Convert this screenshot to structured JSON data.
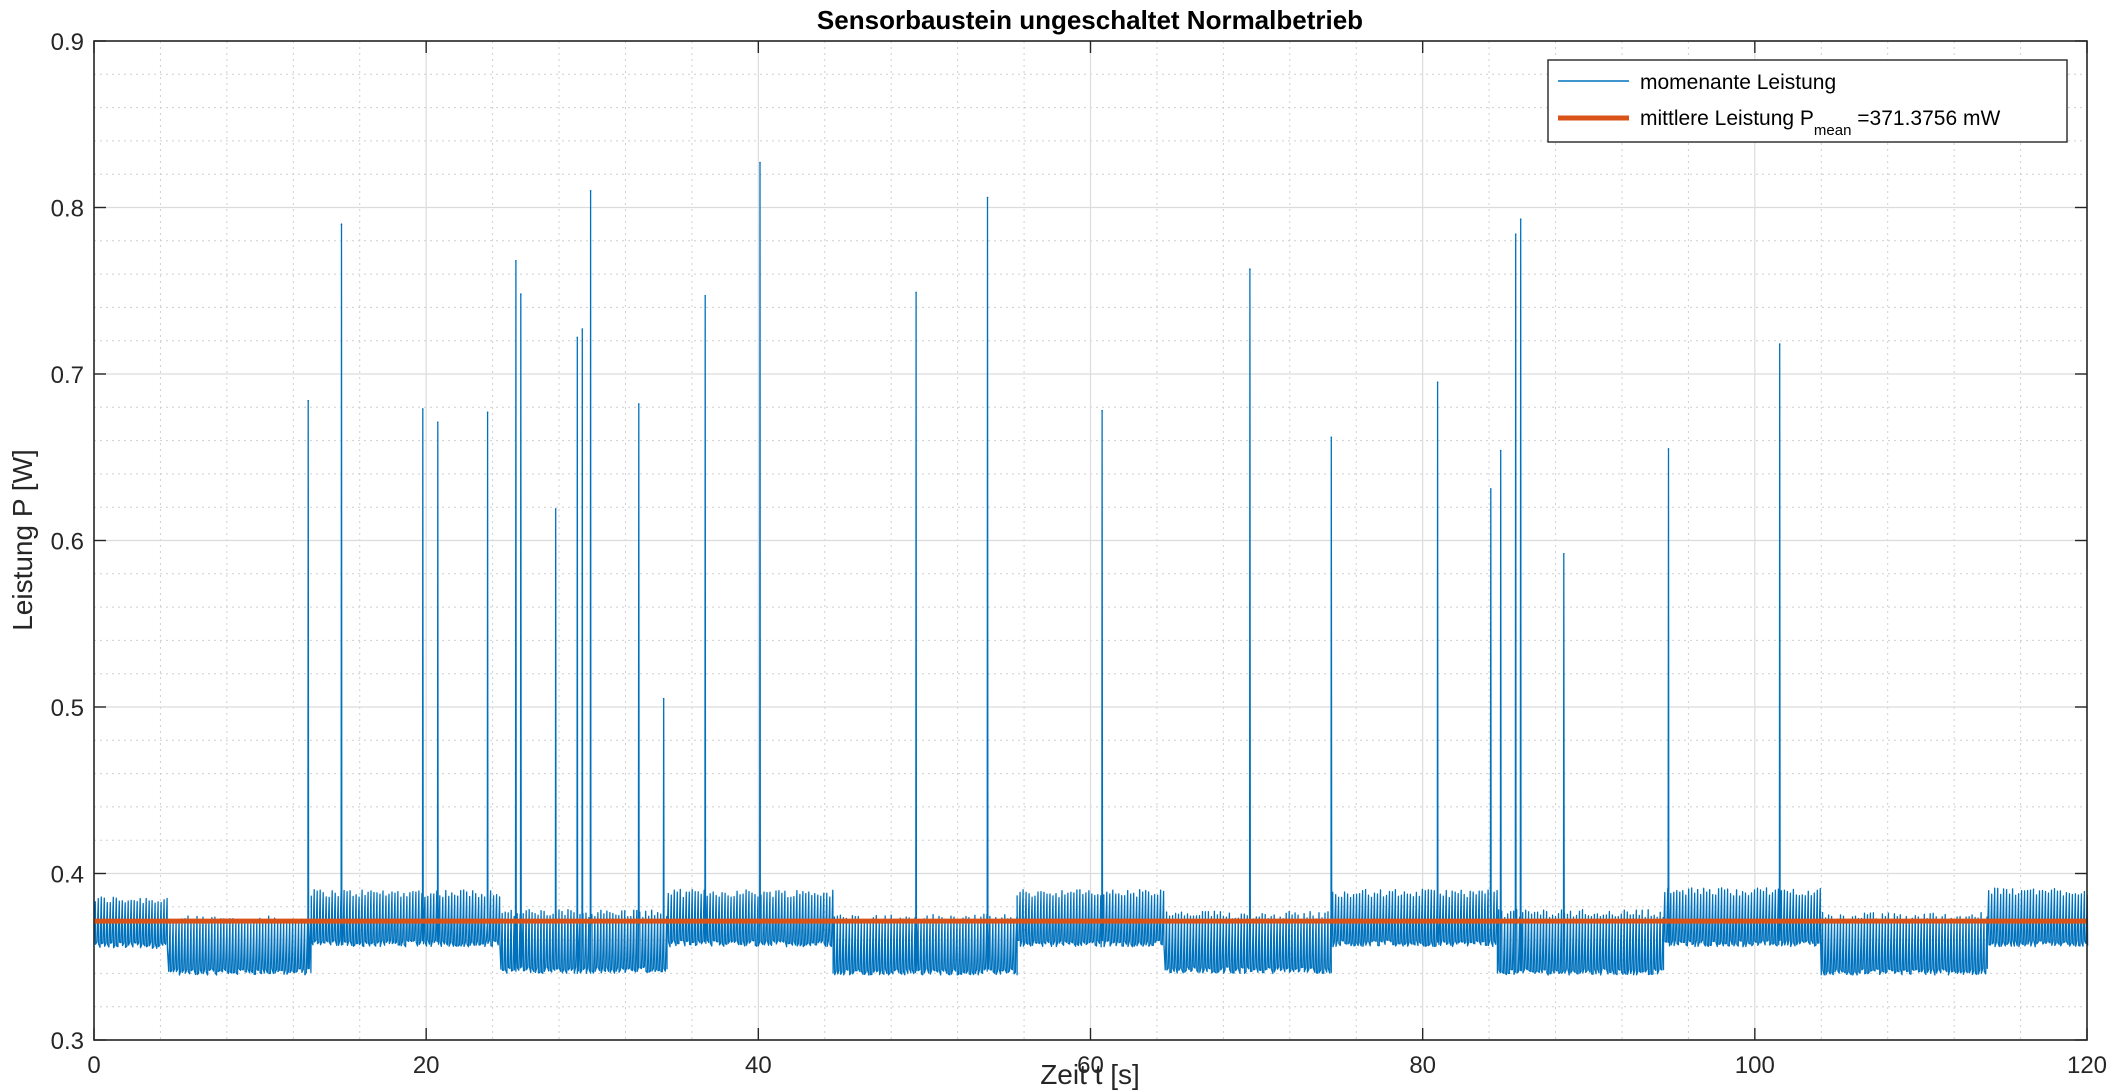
{
  "chart_data": {
    "type": "line",
    "title": "Sensorbaustein ungeschaltet Normalbetrieb",
    "xlabel": "Zeit t [s]",
    "ylabel": "Leistung P [W]",
    "xlim": [
      0,
      120
    ],
    "ylim": [
      0.3,
      0.9
    ],
    "xticks": [
      "0",
      "20",
      "40",
      "60",
      "80",
      "100",
      "120"
    ],
    "yticks": [
      "0.3",
      "0.4",
      "0.5",
      "0.6",
      "0.7",
      "0.8",
      "0.9"
    ],
    "grid": "on (major and minor)",
    "legend_position": "top-right",
    "colors": {
      "instant": "#0072BD",
      "mean": "#D95319"
    },
    "series": [
      {
        "name": "momenante Leistung",
        "style": "thin line",
        "baseline_segments": [
          {
            "x": [
              0.0,
              4.5
            ],
            "low": 0.357,
            "high": 0.384
          },
          {
            "x": [
              4.5,
              13.0
            ],
            "low": 0.341,
            "high": 0.372
          },
          {
            "x": [
              13.0,
              24.5
            ],
            "low": 0.358,
            "high": 0.388
          },
          {
            "x": [
              24.5,
              34.5
            ],
            "low": 0.342,
            "high": 0.376
          },
          {
            "x": [
              34.5,
              44.5
            ],
            "low": 0.358,
            "high": 0.388
          },
          {
            "x": [
              44.5,
              55.5
            ],
            "low": 0.341,
            "high": 0.373
          },
          {
            "x": [
              55.5,
              64.5
            ],
            "low": 0.358,
            "high": 0.388
          },
          {
            "x": [
              64.5,
              74.5
            ],
            "low": 0.342,
            "high": 0.375
          },
          {
            "x": [
              74.5,
              84.5
            ],
            "low": 0.358,
            "high": 0.388
          },
          {
            "x": [
              84.5,
              94.5
            ],
            "low": 0.341,
            "high": 0.376
          },
          {
            "x": [
              94.5,
              104.0
            ],
            "low": 0.358,
            "high": 0.389
          },
          {
            "x": [
              104.0,
              114.0
            ],
            "low": 0.341,
            "high": 0.374
          },
          {
            "x": [
              114.0,
              120.0
            ],
            "low": 0.358,
            "high": 0.389
          }
        ],
        "spikes": [
          {
            "x": 12.9,
            "y": 0.684
          },
          {
            "x": 14.9,
            "y": 0.79
          },
          {
            "x": 19.8,
            "y": 0.679
          },
          {
            "x": 20.7,
            "y": 0.671
          },
          {
            "x": 23.7,
            "y": 0.677
          },
          {
            "x": 25.4,
            "y": 0.768
          },
          {
            "x": 25.7,
            "y": 0.748
          },
          {
            "x": 27.8,
            "y": 0.619
          },
          {
            "x": 29.1,
            "y": 0.722
          },
          {
            "x": 29.4,
            "y": 0.727
          },
          {
            "x": 29.9,
            "y": 0.81
          },
          {
            "x": 32.8,
            "y": 0.682
          },
          {
            "x": 34.3,
            "y": 0.505
          },
          {
            "x": 36.8,
            "y": 0.747
          },
          {
            "x": 40.1,
            "y": 0.827
          },
          {
            "x": 49.5,
            "y": 0.749
          },
          {
            "x": 53.8,
            "y": 0.806
          },
          {
            "x": 60.7,
            "y": 0.678
          },
          {
            "x": 69.6,
            "y": 0.763
          },
          {
            "x": 74.5,
            "y": 0.662
          },
          {
            "x": 80.9,
            "y": 0.695
          },
          {
            "x": 84.1,
            "y": 0.631
          },
          {
            "x": 84.7,
            "y": 0.654
          },
          {
            "x": 85.6,
            "y": 0.784
          },
          {
            "x": 85.9,
            "y": 0.793
          },
          {
            "x": 88.5,
            "y": 0.592
          },
          {
            "x": 94.8,
            "y": 0.655
          },
          {
            "x": 101.5,
            "y": 0.718
          }
        ]
      },
      {
        "name": "mittlere Leistung P_mean =371.3756 mW",
        "style": "thick line",
        "y": 0.3713756
      }
    ],
    "legend": {
      "instant_label": "momenante Leistung",
      "mean_label_prefix": "mittlere Leistung P",
      "mean_label_sub": "mean",
      "mean_label_suffix": " =371.3756 mW"
    }
  }
}
